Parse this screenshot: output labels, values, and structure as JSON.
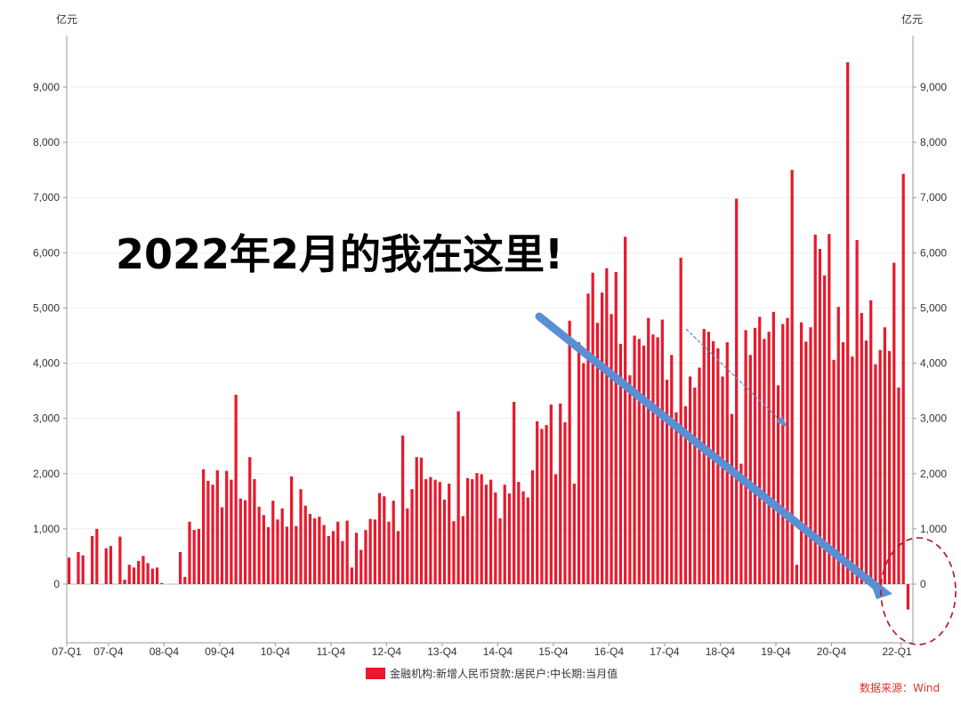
{
  "chart_data": {
    "type": "bar",
    "unit_left": "亿元",
    "unit_right": "亿元",
    "ylim": [
      -1000,
      9800
    ],
    "yticks": [
      "9,000",
      "8,000",
      "7,000",
      "6,000",
      "5,000",
      "4,000",
      "3,000",
      "2,000",
      "1,000",
      "0"
    ],
    "ytick_values": [
      9000,
      8000,
      7000,
      6000,
      5000,
      4000,
      3000,
      2000,
      1000,
      0
    ],
    "xtick_labels": [
      "07-Q1",
      "07-Q4",
      "08-Q4",
      "09-Q4",
      "10-Q4",
      "11-Q4",
      "12-Q4",
      "13-Q4",
      "14-Q4",
      "15-Q4",
      "16-Q4",
      "17-Q4",
      "18-Q4",
      "19-Q4",
      "20-Q4",
      "22-Q1"
    ],
    "start_period": "2007-01",
    "series": [
      {
        "name": "金融机构:新增人民币贷款:居民户:中长期:当月值",
        "color": "#e8192c",
        "values": [
          480,
          0,
          580,
          520,
          0,
          870,
          1000,
          0,
          650,
          690,
          0,
          860,
          80,
          350,
          300,
          420,
          510,
          380,
          280,
          300,
          20,
          0,
          0,
          0,
          580,
          130,
          1130,
          980,
          1000,
          2080,
          1870,
          1800,
          2060,
          1390,
          2050,
          1890,
          3430,
          1550,
          1520,
          2300,
          1900,
          1400,
          1250,
          1030,
          1510,
          1170,
          1370,
          1040,
          1950,
          1050,
          1720,
          1420,
          1270,
          1190,
          1220,
          1070,
          870,
          960,
          1130,
          780,
          1150,
          300,
          930,
          620,
          980,
          1180,
          1170,
          1650,
          1590,
          1130,
          1510,
          960,
          2690,
          1370,
          1720,
          2300,
          2290,
          1900,
          1940,
          1890,
          1850,
          1530,
          1820,
          1140,
          3130,
          1230,
          1920,
          1900,
          2010,
          1990,
          1800,
          1890,
          1660,
          1190,
          1800,
          1640,
          3300,
          1850,
          1680,
          1570,
          2060,
          2950,
          2810,
          2880,
          3250,
          1990,
          3270,
          2930,
          4770,
          1820,
          4380,
          4000,
          5260,
          5640,
          4730,
          5280,
          5720,
          4890,
          5650,
          4350,
          6290,
          3780,
          4500,
          4440,
          4320,
          4820,
          4520,
          4470,
          4790,
          3700,
          4150,
          3110,
          5910,
          3220,
          3760,
          3560,
          3920,
          4620,
          4570,
          4400,
          4270,
          3760,
          4380,
          3080,
          6980,
          2180,
          4600,
          4150,
          4640,
          4840,
          4440,
          4570,
          4930,
          3600,
          4710,
          4820,
          7500,
          350,
          4740,
          4390,
          4650,
          6330,
          6070,
          5590,
          6340,
          4060,
          5020,
          4380,
          9450,
          4120,
          6230,
          4910,
          4410,
          5140,
          3980,
          4240,
          4650,
          4220,
          5820,
          3560,
          7430,
          -460
        ]
      }
    ],
    "annotation": "2022年2月的我在这里!",
    "legend_position": "bottom-center",
    "source_text": "数据来源：Wind",
    "grid": true
  }
}
